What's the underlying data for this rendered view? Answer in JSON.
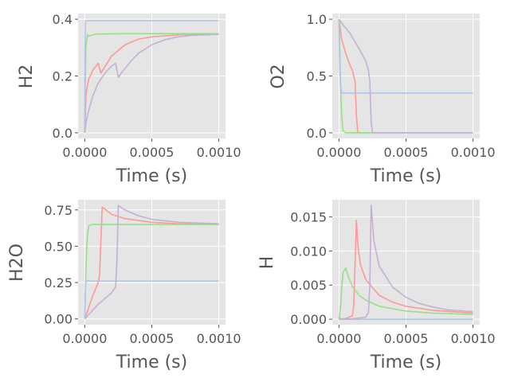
{
  "chart_data": [
    {
      "type": "line",
      "xlabel": "Time (s)",
      "ylabel": "H2",
      "xlim": [
        -5e-05,
        0.00105
      ],
      "ylim": [
        -0.02,
        0.42
      ],
      "xticks": [
        0.0,
        0.0005,
        0.001
      ],
      "xtick_labels": [
        "0.0000",
        "0.0005",
        "0.0010"
      ],
      "yticks": [
        0.0,
        0.2,
        0.4
      ],
      "ytick_labels": [
        "0.0",
        "0.2",
        "0.4"
      ],
      "grid": true,
      "series": [
        {
          "color": "#ff9896",
          "points": [
            [
              0,
              0
            ],
            [
              5e-06,
              0.08
            ],
            [
              1e-05,
              0.14
            ],
            [
              3e-05,
              0.19
            ],
            [
              6e-05,
              0.22
            ],
            [
              0.0001,
              0.245
            ],
            [
              0.00012,
              0.21
            ],
            [
              0.00014,
              0.225
            ],
            [
              0.0002,
              0.27
            ],
            [
              0.0003,
              0.31
            ],
            [
              0.0004,
              0.33
            ],
            [
              0.0005,
              0.338
            ],
            [
              0.0007,
              0.345
            ],
            [
              0.001,
              0.348
            ]
          ]
        },
        {
          "color": "#98df8a",
          "points": [
            [
              0,
              0
            ],
            [
              3e-06,
              0.15
            ],
            [
              8e-06,
              0.3
            ],
            [
              2e-05,
              0.345
            ],
            [
              3e-05,
              0.34
            ],
            [
              6e-05,
              0.345
            ],
            [
              0.0001,
              0.348
            ],
            [
              0.0003,
              0.349
            ],
            [
              0.001,
              0.349
            ]
          ]
        },
        {
          "color": "#aec7e8",
          "points": [
            [
              0,
              0
            ],
            [
              2e-06,
              0.3
            ],
            [
              5e-06,
              0.395
            ],
            [
              0.001,
              0.395
            ]
          ]
        },
        {
          "color": "#c5b0d5",
          "points": [
            [
              0,
              0
            ],
            [
              1e-05,
              0.04
            ],
            [
              3e-05,
              0.08
            ],
            [
              6e-05,
              0.13
            ],
            [
              0.0001,
              0.175
            ],
            [
              0.00015,
              0.21
            ],
            [
              0.0002,
              0.235
            ],
            [
              0.00023,
              0.245
            ],
            [
              0.00025,
              0.195
            ],
            [
              0.00028,
              0.215
            ],
            [
              0.00035,
              0.255
            ],
            [
              0.0004,
              0.28
            ],
            [
              0.0005,
              0.31
            ],
            [
              0.0006,
              0.328
            ],
            [
              0.0007,
              0.338
            ],
            [
              0.0008,
              0.343
            ],
            [
              0.001,
              0.347
            ]
          ]
        }
      ]
    },
    {
      "type": "line",
      "xlabel": "Time (s)",
      "ylabel": "O2",
      "xlim": [
        -5e-05,
        0.00105
      ],
      "ylim": [
        -0.05,
        1.05
      ],
      "xticks": [
        0.0,
        0.0005,
        0.001
      ],
      "xtick_labels": [
        "0.0000",
        "0.0005",
        "0.0010"
      ],
      "yticks": [
        0.0,
        0.5,
        1.0
      ],
      "ytick_labels": [
        "0.0",
        "0.5",
        "1.0"
      ],
      "grid": true,
      "series": [
        {
          "color": "#ff9896",
          "points": [
            [
              0,
              1.0
            ],
            [
              2e-05,
              0.82
            ],
            [
              5e-05,
              0.7
            ],
            [
              8e-05,
              0.6
            ],
            [
              0.0001,
              0.55
            ],
            [
              0.00012,
              0.45
            ],
            [
              0.00013,
              0.15
            ],
            [
              0.00014,
              0.0
            ],
            [
              0.001,
              0.0
            ]
          ]
        },
        {
          "color": "#98df8a",
          "points": [
            [
              0,
              1.0
            ],
            [
              5e-06,
              0.8
            ],
            [
              1e-05,
              0.5
            ],
            [
              2e-05,
              0.15
            ],
            [
              3e-05,
              0.02
            ],
            [
              5e-05,
              0.0
            ],
            [
              0.001,
              0.0
            ]
          ]
        },
        {
          "color": "#aec7e8",
          "points": [
            [
              0,
              1.0
            ],
            [
              5e-06,
              0.6
            ],
            [
              1e-05,
              0.42
            ],
            [
              2e-05,
              0.35
            ],
            [
              0.001,
              0.35
            ]
          ]
        },
        {
          "color": "#c5b0d5",
          "points": [
            [
              0,
              1.0
            ],
            [
              3e-05,
              0.95
            ],
            [
              8e-05,
              0.88
            ],
            [
              0.00012,
              0.8
            ],
            [
              0.00016,
              0.72
            ],
            [
              0.0002,
              0.63
            ],
            [
              0.00022,
              0.55
            ],
            [
              0.00023,
              0.45
            ],
            [
              0.00024,
              0.1
            ],
            [
              0.00025,
              0.0
            ],
            [
              0.001,
              0.0
            ]
          ]
        }
      ]
    },
    {
      "type": "line",
      "xlabel": "Time (s)",
      "ylabel": "H2O",
      "xlim": [
        -5e-05,
        0.00105
      ],
      "ylim": [
        -0.04,
        0.82
      ],
      "xticks": [
        0.0,
        0.0005,
        0.001
      ],
      "xtick_labels": [
        "0.0000",
        "0.0005",
        "0.0010"
      ],
      "yticks": [
        0.0,
        0.25,
        0.5,
        0.75
      ],
      "ytick_labels": [
        "0.00",
        "0.25",
        "0.50",
        "0.75"
      ],
      "grid": true,
      "series": [
        {
          "color": "#ff9896",
          "points": [
            [
              0,
              0
            ],
            [
              3e-05,
              0.08
            ],
            [
              6e-05,
              0.16
            ],
            [
              0.0001,
              0.25
            ],
            [
              0.00011,
              0.3
            ],
            [
              0.00013,
              0.77
            ],
            [
              0.0002,
              0.72
            ],
            [
              0.0003,
              0.69
            ],
            [
              0.0005,
              0.665
            ],
            [
              0.0007,
              0.655
            ],
            [
              0.001,
              0.65
            ]
          ]
        },
        {
          "color": "#98df8a",
          "points": [
            [
              0,
              0
            ],
            [
              5e-06,
              0.2
            ],
            [
              1e-05,
              0.4
            ],
            [
              2e-05,
              0.58
            ],
            [
              3e-05,
              0.64
            ],
            [
              5e-05,
              0.65
            ],
            [
              0.001,
              0.65
            ]
          ]
        },
        {
          "color": "#aec7e8",
          "points": [
            [
              0,
              0
            ],
            [
              3e-06,
              0.15
            ],
            [
              6e-06,
              0.24
            ],
            [
              1e-05,
              0.26
            ],
            [
              0.001,
              0.26
            ]
          ]
        },
        {
          "color": "#c5b0d5",
          "points": [
            [
              0,
              0
            ],
            [
              5e-05,
              0.05
            ],
            [
              0.0001,
              0.1
            ],
            [
              0.00015,
              0.14
            ],
            [
              0.0002,
              0.18
            ],
            [
              0.00023,
              0.22
            ],
            [
              0.00024,
              0.4
            ],
            [
              0.00025,
              0.78
            ],
            [
              0.0003,
              0.75
            ],
            [
              0.0004,
              0.71
            ],
            [
              0.0005,
              0.685
            ],
            [
              0.0007,
              0.665
            ],
            [
              0.001,
              0.655
            ]
          ]
        }
      ]
    },
    {
      "type": "line",
      "xlabel": "Time (s)",
      "ylabel": "H",
      "xlim": [
        -5e-05,
        0.00105
      ],
      "ylim": [
        -0.0008,
        0.0175
      ],
      "xticks": [
        0.0,
        0.0005,
        0.001
      ],
      "xtick_labels": [
        "0.0000",
        "0.0005",
        "0.0010"
      ],
      "yticks": [
        0.0,
        0.005,
        0.01,
        0.015
      ],
      "ytick_labels": [
        "0.000",
        "0.005",
        "0.010",
        "0.015"
      ],
      "grid": true,
      "series": [
        {
          "color": "#ff9896",
          "points": [
            [
              0,
              0
            ],
            [
              5e-05,
              0.0001
            ],
            [
              0.0001,
              0.0005
            ],
            [
              0.00011,
              0.002
            ],
            [
              0.00012,
              0.008
            ],
            [
              0.00013,
              0.0145
            ],
            [
              0.00014,
              0.011
            ],
            [
              0.00016,
              0.008
            ],
            [
              0.0002,
              0.0058
            ],
            [
              0.0003,
              0.0035
            ],
            [
              0.0004,
              0.0025
            ],
            [
              0.0005,
              0.0019
            ],
            [
              0.0007,
              0.0013
            ],
            [
              0.001,
              0.0009
            ]
          ]
        },
        {
          "color": "#98df8a",
          "points": [
            [
              0,
              0
            ],
            [
              1e-05,
              0.0015
            ],
            [
              2e-05,
              0.0045
            ],
            [
              3e-05,
              0.0068
            ],
            [
              5e-05,
              0.0075
            ],
            [
              7e-05,
              0.0062
            ],
            [
              0.0001,
              0.0048
            ],
            [
              0.00015,
              0.0035
            ],
            [
              0.0002,
              0.0028
            ],
            [
              0.0003,
              0.0019
            ],
            [
              0.0005,
              0.0012
            ],
            [
              0.0007,
              0.0009
            ],
            [
              0.001,
              0.0007
            ]
          ]
        },
        {
          "color": "#aec7e8",
          "points": [
            [
              0,
              0.0
            ],
            [
              5e-06,
              0.0004
            ],
            [
              1e-05,
              0.0001
            ],
            [
              2e-05,
              0.0
            ],
            [
              0.001,
              0.0
            ]
          ]
        },
        {
          "color": "#c5b0d5",
          "points": [
            [
              0,
              0
            ],
            [
              0.0001,
              5e-05
            ],
            [
              0.0002,
              0.0003
            ],
            [
              0.00022,
              0.001
            ],
            [
              0.00023,
              0.005
            ],
            [
              0.00024,
              0.0167
            ],
            [
              0.00026,
              0.0115
            ],
            [
              0.0003,
              0.0078
            ],
            [
              0.0004,
              0.0047
            ],
            [
              0.0005,
              0.0032
            ],
            [
              0.0006,
              0.0023
            ],
            [
              0.0007,
              0.0018
            ],
            [
              0.0008,
              0.0014
            ],
            [
              0.001,
              0.0011
            ]
          ]
        }
      ]
    }
  ]
}
